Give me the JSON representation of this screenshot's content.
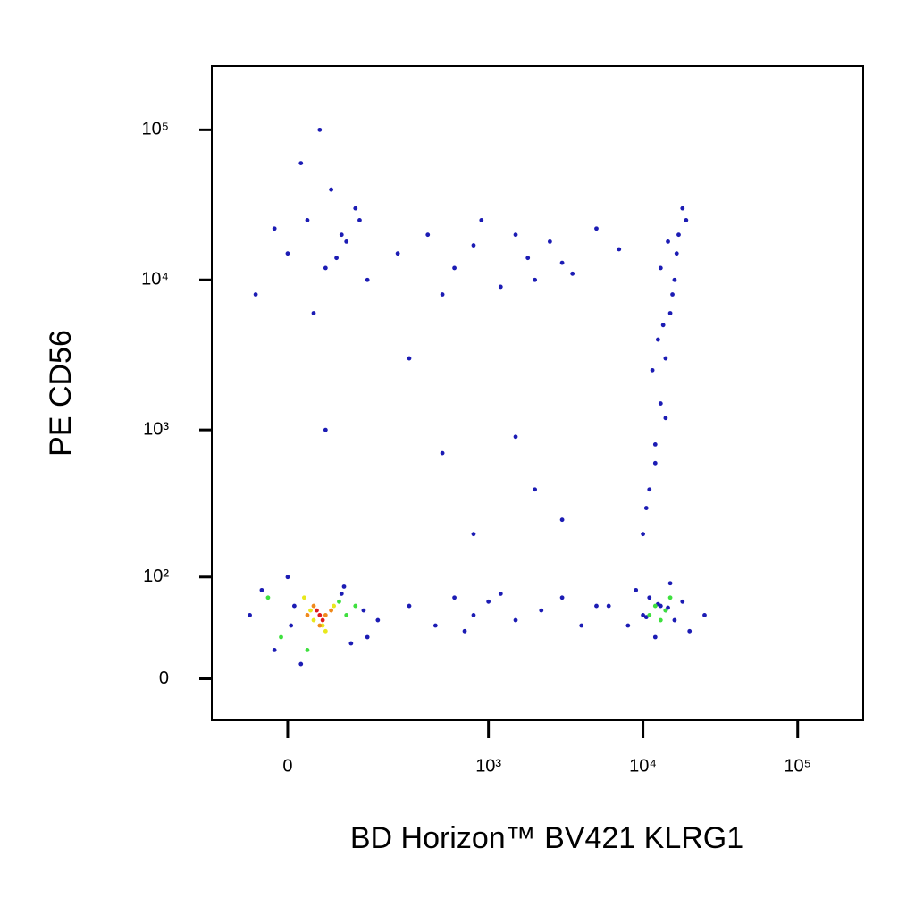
{
  "chart_data": {
    "type": "scatter",
    "x_label": "BD Horizon™ BV421 KLRG1",
    "y_label": "PE CD56",
    "xscale": "biexponential",
    "yscale": "biexponential",
    "xlim": [
      -140,
      265000
    ],
    "ylim": [
      -30,
      266000
    ],
    "xticks": [
      0,
      {
        "value": 1000,
        "label": "10³"
      },
      {
        "value": 10000,
        "label": "10⁴"
      },
      {
        "value": 100000,
        "label": "10⁵"
      }
    ],
    "yticks": [
      0,
      {
        "value": 100,
        "label": "10²"
      },
      {
        "value": 1000,
        "label": "10³"
      },
      {
        "value": 10000,
        "label": "10⁴"
      },
      {
        "value": 100000,
        "label": "10⁵"
      }
    ],
    "series": [
      {
        "color": "#1c1cb4",
        "x": [
          -50,
          0,
          30,
          60,
          90,
          120,
          150,
          20,
          70,
          100,
          -20,
          50,
          80,
          130,
          40,
          250,
          400,
          600,
          900,
          1200,
          1800,
          2500,
          3500,
          5000,
          7000,
          500,
          800,
          1500,
          3000,
          2000,
          10000,
          11000,
          12000,
          13000,
          14000,
          15000,
          16000,
          17000,
          18000,
          12000,
          14000,
          11500,
          13500,
          15500,
          16500,
          19000,
          10500,
          13000,
          14500,
          12500,
          6000,
          8000,
          9000,
          10000,
          11000,
          12000,
          13000,
          14000,
          15000,
          16000,
          18000,
          20000,
          25000,
          12500,
          14500,
          10500,
          300,
          450,
          600,
          800,
          1000,
          1500,
          2200,
          3000,
          4000,
          5000,
          700,
          1200,
          60,
          300,
          500,
          2000,
          1500,
          800,
          3000,
          -60,
          10,
          90,
          150,
          180,
          -40,
          0,
          110,
          140,
          5,
          -20,
          95,
          20
        ],
        "y": [
          8000,
          15000,
          25000,
          12000,
          20000,
          30000,
          10000,
          60000,
          40000,
          18000,
          22000,
          100000,
          14000,
          25000,
          6000,
          15000,
          20000,
          12000,
          25000,
          9000,
          14000,
          18000,
          11000,
          22000,
          16000,
          8000,
          17000,
          20000,
          13000,
          10000,
          200,
          400,
          800,
          1500,
          3000,
          6000,
          10000,
          20000,
          30000,
          600,
          1200,
          2500,
          5000,
          8000,
          15000,
          25000,
          300,
          12000,
          18000,
          4000,
          60,
          40,
          80,
          50,
          70,
          30,
          60,
          55,
          90,
          45,
          65,
          35,
          50,
          62,
          58,
          48,
          60,
          40,
          70,
          50,
          65,
          45,
          55,
          70,
          40,
          60,
          35,
          75,
          1000,
          3000,
          700,
          400,
          900,
          200,
          250,
          50,
          60,
          75,
          30,
          45,
          80,
          100,
          25,
          55,
          40,
          20,
          85,
          10
        ]
      },
      {
        "color": "#3ee03e",
        "x": [
          -10,
          100,
          120,
          -30,
          30,
          85,
          12000,
          14000,
          13000,
          15000,
          11000
        ],
        "y": [
          30,
          50,
          60,
          70,
          20,
          65,
          60,
          55,
          45,
          70,
          50
        ]
      },
      {
        "color": "#e8e81c",
        "x": [
          25,
          40,
          60,
          75,
          35,
          55
        ],
        "y": [
          70,
          45,
          35,
          60,
          55,
          40
        ]
      },
      {
        "color": "#f08a1c",
        "x": [
          40,
          60,
          50,
          30,
          70
        ],
        "y": [
          60,
          50,
          40,
          50,
          55
        ]
      },
      {
        "color": "#e01c1c",
        "x": [
          45,
          55,
          50
        ],
        "y": [
          55,
          45,
          50
        ]
      }
    ]
  }
}
